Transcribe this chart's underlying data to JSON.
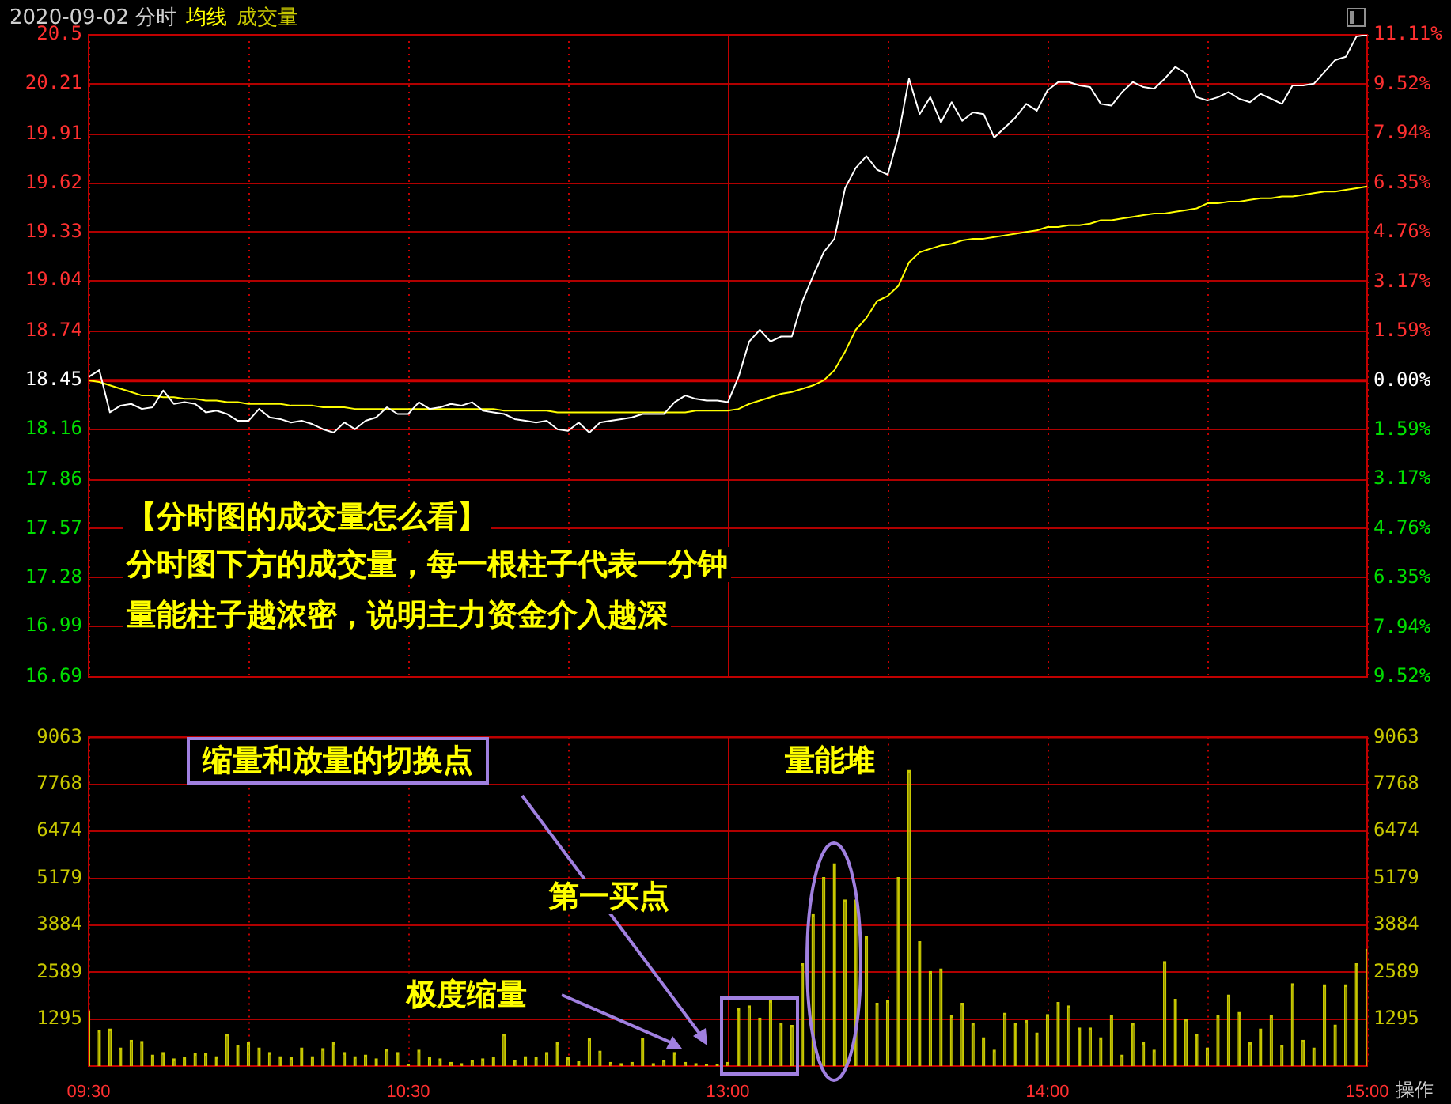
{
  "chart_data": [
    {
      "type": "line",
      "title": "2020-09-02 分时",
      "categories": [
        null,
        null,
        null,
        null,
        null,
        null,
        null,
        null,
        null,
        null,
        null,
        null,
        null,
        null,
        null,
        null,
        null,
        null,
        null,
        null,
        null,
        null,
        null,
        null,
        null,
        null,
        null,
        null,
        null,
        null,
        null,
        null,
        null,
        null,
        null,
        null,
        null,
        null,
        null,
        null,
        null,
        null,
        null,
        null,
        null,
        null,
        null,
        null,
        null,
        null,
        null,
        null,
        null,
        null,
        null,
        null,
        null,
        null,
        null,
        null,
        null,
        null,
        null,
        null,
        null,
        null,
        null,
        null,
        null,
        null,
        null,
        null,
        null,
        null,
        null,
        null,
        null,
        null,
        null,
        null,
        null,
        null,
        null,
        null,
        null,
        null,
        null,
        null,
        null,
        null,
        null,
        null,
        null,
        null,
        null,
        null,
        null,
        null,
        null,
        null,
        null,
        null,
        null,
        null,
        null,
        null,
        null,
        null,
        null,
        null,
        null,
        null,
        null,
        null,
        null,
        null,
        null,
        null,
        null,
        null,
        null
      ],
      "series": [
        {
          "color": "#ffffff",
          "values": [
            18.47,
            18.51,
            18.26,
            18.3,
            18.31,
            18.28,
            18.29,
            18.39,
            18.31,
            18.32,
            18.31,
            18.26,
            18.27,
            18.25,
            18.21,
            18.21,
            18.28,
            18.23,
            18.22,
            18.2,
            18.21,
            18.19,
            18.16,
            18.14,
            18.2,
            18.16,
            18.21,
            18.23,
            18.29,
            18.25,
            18.25,
            18.32,
            18.28,
            18.29,
            18.31,
            18.3,
            18.32,
            18.27,
            18.26,
            18.25,
            18.22,
            18.21,
            18.2,
            18.21,
            18.16,
            18.15,
            18.2,
            18.14,
            18.2,
            18.21,
            18.22,
            18.23,
            18.25,
            18.25,
            18.25,
            18.32,
            18.36,
            18.34,
            18.33,
            18.33,
            18.32,
            18.47,
            18.68,
            18.75,
            18.68,
            18.71,
            18.71,
            18.92,
            19.07,
            19.21,
            19.29,
            19.59,
            19.71,
            19.78,
            19.7,
            19.67,
            19.9,
            20.24,
            20.03,
            20.13,
            19.98,
            20.1,
            19.99,
            20.04,
            20.03,
            19.89,
            19.95,
            20.01,
            20.09,
            20.05,
            20.17,
            20.22,
            20.22,
            20.2,
            20.19,
            20.09,
            20.08,
            20.16,
            20.22,
            20.19,
            20.18,
            20.24,
            20.31,
            20.27,
            20.13,
            20.11,
            20.13,
            20.16,
            20.12,
            20.1,
            20.15,
            20.12,
            20.09,
            20.2,
            20.2,
            20.21,
            20.28,
            20.35,
            20.37,
            20.49,
            20.5
          ]
        },
        {
          "name": "均线",
          "color": "#ffff00",
          "values": [
            18.45,
            18.44,
            18.42,
            18.4,
            18.38,
            18.36,
            18.36,
            18.35,
            18.35,
            18.34,
            18.34,
            18.33,
            18.33,
            18.32,
            18.32,
            18.31,
            18.31,
            18.31,
            18.31,
            18.3,
            18.3,
            18.3,
            18.29,
            18.29,
            18.29,
            18.28,
            18.28,
            18.28,
            18.28,
            18.28,
            18.28,
            18.28,
            18.28,
            18.28,
            18.28,
            18.28,
            18.28,
            18.28,
            18.28,
            18.27,
            18.27,
            18.27,
            18.27,
            18.27,
            18.26,
            18.26,
            18.26,
            18.26,
            18.26,
            18.26,
            18.26,
            18.26,
            18.26,
            18.26,
            18.26,
            18.26,
            18.26,
            18.27,
            18.27,
            18.27,
            18.27,
            18.28,
            18.31,
            18.33,
            18.35,
            18.37,
            18.38,
            18.4,
            18.42,
            18.45,
            18.51,
            18.62,
            18.75,
            18.82,
            18.92,
            18.95,
            19.01,
            19.15,
            19.21,
            19.23,
            19.25,
            19.26,
            19.28,
            19.29,
            19.29,
            19.3,
            19.31,
            19.32,
            19.33,
            19.34,
            19.36,
            19.36,
            19.37,
            19.37,
            19.38,
            19.4,
            19.4,
            19.41,
            19.42,
            19.43,
            19.44,
            19.44,
            19.45,
            19.46,
            19.47,
            19.5,
            19.5,
            19.51,
            19.51,
            19.52,
            19.53,
            19.53,
            19.54,
            19.54,
            19.55,
            19.56,
            19.57,
            19.57,
            19.58,
            19.59,
            19.6
          ]
        }
      ],
      "ylim": [
        16.69,
        20.5
      ],
      "yticks": [
        16.69,
        16.99,
        17.28,
        17.57,
        17.86,
        18.16,
        18.45,
        18.74,
        19.04,
        19.33,
        19.62,
        19.91,
        20.21,
        20.5
      ],
      "y2lim": [
        -9.52,
        11.11
      ],
      "y2ticks": [
        {
          "value": -9.52,
          "label": "9.52%"
        },
        {
          "value": -7.94,
          "label": "7.94%"
        },
        {
          "value": -6.35,
          "label": "6.35%"
        },
        {
          "value": -4.76,
          "label": "4.76%"
        },
        {
          "value": -3.17,
          "label": "3.17%"
        },
        {
          "value": -1.59,
          "label": "1.59%"
        },
        {
          "value": 0,
          "label": "0.00%"
        },
        {
          "value": 1.59,
          "label": "1.59%"
        },
        {
          "value": 3.17,
          "label": "3.17%"
        },
        {
          "value": 4.76,
          "label": "4.76%"
        },
        {
          "value": 6.35,
          "label": "6.35%"
        },
        {
          "value": 7.94,
          "label": "7.94%"
        },
        {
          "value": 9.52,
          "label": "9.52%"
        },
        {
          "value": 11.11,
          "label": "11.11%"
        }
      ],
      "ref_lines": [
        {
          "axis": "y2",
          "value": 0,
          "color": "#cc0000"
        }
      ],
      "annotations": [
        "【分时图的成交量怎么看】",
        "分时图下方的成交量，每一根柱子代表一分钟",
        "量能柱子越浓密，说明主力资金介入越深"
      ],
      "grid": true,
      "legend": "top left",
      "marker": "none",
      "tick_labels": "y"
    },
    {
      "type": "bar",
      "categories": [
        "09:30",
        null,
        null,
        null,
        null,
        null,
        null,
        null,
        null,
        null,
        null,
        null,
        null,
        null,
        null,
        null,
        null,
        null,
        null,
        null,
        null,
        null,
        null,
        null,
        null,
        null,
        null,
        null,
        null,
        null,
        "10:30",
        null,
        null,
        null,
        null,
        null,
        null,
        null,
        null,
        null,
        null,
        null,
        null,
        null,
        null,
        null,
        null,
        null,
        null,
        null,
        null,
        null,
        null,
        null,
        null,
        null,
        null,
        null,
        null,
        null,
        "13:00",
        null,
        null,
        null,
        null,
        null,
        null,
        null,
        null,
        null,
        null,
        null,
        null,
        null,
        null,
        null,
        null,
        null,
        null,
        null,
        null,
        null,
        null,
        null,
        null,
        null,
        null,
        null,
        null,
        null,
        "14:00",
        null,
        null,
        null,
        null,
        null,
        null,
        null,
        null,
        null,
        null,
        null,
        null,
        null,
        null,
        null,
        null,
        null,
        null,
        null,
        null,
        null,
        null,
        null,
        null,
        null,
        null,
        null,
        null,
        null,
        "15:00"
      ],
      "series": [
        {
          "name": "成交量",
          "color": "#c8c800",
          "values": [
            1520,
            980,
            1020,
            500,
            710,
            680,
            300,
            370,
            200,
            230,
            340,
            340,
            260,
            880,
            570,
            640,
            500,
            370,
            260,
            230,
            500,
            260,
            480,
            640,
            370,
            260,
            300,
            200,
            460,
            370,
            30,
            440,
            230,
            200,
            100,
            70,
            160,
            200,
            230,
            880,
            160,
            260,
            230,
            370,
            640,
            230,
            120,
            750,
            410,
            100,
            70,
            100,
            750,
            70,
            160,
            370,
            100,
            70,
            40,
            40,
            100,
            1590,
            1660,
            1320,
            1800,
            1180,
            1120,
            2820,
            4180,
            5200,
            5580,
            4580,
            4580,
            3560,
            1730,
            1800,
            5200,
            8150,
            3430,
            2610,
            2680,
            1390,
            1730,
            1180,
            780,
            440,
            1460,
            1180,
            1250,
            910,
            1420,
            1750,
            1660,
            1050,
            1050,
            780,
            1390,
            300,
            1180,
            640,
            440,
            2880,
            1840,
            1290,
            880,
            500,
            1390,
            1960,
            1480,
            640,
            1020,
            1390,
            570,
            2270,
            710,
            500,
            2240,
            1130,
            2240,
            2820,
            3220
          ]
        }
      ],
      "ylim": [
        0,
        9063
      ],
      "yticks": [
        1295,
        2589,
        3884,
        5179,
        6474,
        7768,
        9063
      ],
      "y2lim": [
        0,
        9063
      ],
      "y2ticks": [
        1295,
        2589,
        3884,
        5179,
        6474,
        7768,
        9063
      ],
      "annotations": [
        "缩量和放量的切换点",
        "量能堆",
        "第一买点",
        "极度缩量",
        "操作"
      ],
      "grid": true,
      "legend": "top"
    }
  ]
}
